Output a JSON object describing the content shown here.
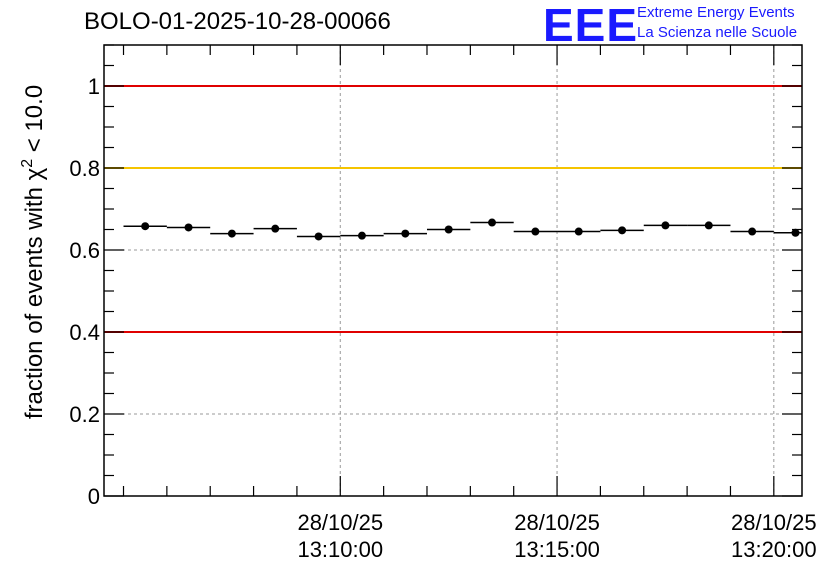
{
  "logo": {
    "mark": "EEE",
    "line1": "Extreme Energy Events",
    "line2": "La Scienza nelle Scuole"
  },
  "colors": {
    "red_line": "#e00000",
    "yellow_line": "#f5c400",
    "grid": "#9a9a9a",
    "points": "#000000",
    "logo": "#1a1aff"
  },
  "chart_data": {
    "type": "scatter",
    "title": "BOLO-01-2025-10-28-00066",
    "xlabel": "",
    "ylabel": "fraction of events with χ² < 10.0",
    "ylabel_parts": {
      "prefix": "fraction of events with ",
      "symbol": "χ",
      "power": "2",
      "suffix": " < 10.0"
    },
    "x_unit": "minutes since 13:05:00",
    "xlim": [
      -0.45,
      15.65
    ],
    "ylim": [
      0,
      1.1
    ],
    "yticks": [
      0,
      0.2,
      0.4,
      0.6,
      0.8,
      1
    ],
    "ytick_labels": [
      "0",
      "0.2",
      "0.4",
      "0.6",
      "0.8",
      "1"
    ],
    "xticks_major": [
      5,
      10,
      15
    ],
    "xtick_labels": [
      [
        "28/10/25",
        "13:10:00"
      ],
      [
        "28/10/25",
        "13:15:00"
      ],
      [
        "28/10/25",
        "13:20:00"
      ]
    ],
    "bin_width": 1,
    "x": [
      0.5,
      1.5,
      2.5,
      3.5,
      4.5,
      5.5,
      6.5,
      7.5,
      8.5,
      9.5,
      10.5,
      11.5,
      12.5,
      13.5,
      14.5,
      15.5
    ],
    "values": [
      0.658,
      0.655,
      0.64,
      0.652,
      0.633,
      0.635,
      0.64,
      0.65,
      0.667,
      0.645,
      0.645,
      0.648,
      0.66,
      0.66,
      0.645,
      0.642
    ],
    "reference_lines": [
      {
        "y": 1.0,
        "color": "#e00000"
      },
      {
        "y": 0.8,
        "color": "#f5c400"
      },
      {
        "y": 0.4,
        "color": "#e00000"
      }
    ],
    "grid": true
  }
}
